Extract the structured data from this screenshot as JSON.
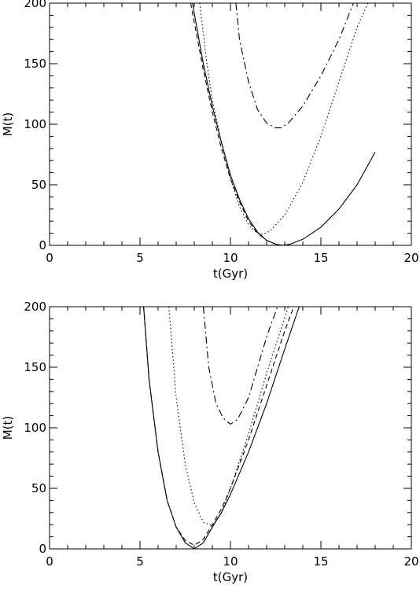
{
  "chart_data": [
    {
      "type": "line",
      "xlabel": "t(Gyr)",
      "ylabel": "M(t)",
      "xlim": [
        0,
        20
      ],
      "ylim": [
        0,
        200
      ],
      "xticks": [
        0,
        5,
        10,
        15,
        20
      ],
      "yticks": [
        0,
        50,
        100,
        150,
        200
      ],
      "grid": false,
      "series": [
        {
          "style": "solid",
          "x": [
            7.9,
            8.5,
            9.0,
            9.5,
            10.0,
            10.5,
            11.0,
            11.5,
            12.0,
            12.5,
            12.9,
            13.3,
            14.0,
            15.0,
            16.0,
            17.0,
            18.0
          ],
          "y": [
            200,
            150,
            115,
            85,
            58,
            38,
            22,
            11,
            4,
            1,
            0,
            1,
            5,
            15,
            30,
            50,
            77
          ]
        },
        {
          "style": "dashed",
          "x": [
            7.8,
            8.5,
            9.0,
            9.5,
            10.0,
            10.5,
            11.0,
            11.5,
            12.0,
            12.5,
            12.9,
            13.3
          ],
          "y": [
            200,
            145,
            110,
            80,
            55,
            36,
            20,
            10,
            4,
            1,
            0,
            1
          ]
        },
        {
          "style": "dotted",
          "x": [
            8.3,
            8.7,
            9.0,
            9.5,
            10.0,
            10.5,
            11.0,
            11.5,
            11.8,
            12.2,
            13.0,
            14.0,
            15.0,
            16.0,
            17.0,
            17.6
          ],
          "y": [
            200,
            150,
            120,
            85,
            55,
            32,
            17,
            10,
            9,
            12,
            25,
            52,
            90,
            135,
            180,
            200
          ]
        },
        {
          "style": "dashdot",
          "x": [
            10.3,
            10.5,
            11.0,
            11.5,
            12.0,
            12.5,
            12.8,
            13.2,
            14.0,
            15.0,
            16.0,
            16.8
          ],
          "y": [
            200,
            170,
            135,
            112,
            101,
            97,
            97,
            101,
            115,
            140,
            170,
            200
          ]
        }
      ]
    },
    {
      "type": "line",
      "xlabel": "t(Gyr)",
      "ylabel": "M(t)",
      "xlim": [
        0,
        20
      ],
      "ylim": [
        0,
        200
      ],
      "xticks": [
        0,
        5,
        10,
        15,
        20
      ],
      "yticks": [
        0,
        50,
        100,
        150,
        200
      ],
      "grid": false,
      "series": [
        {
          "style": "solid",
          "x": [
            5.2,
            5.5,
            6.0,
            6.5,
            7.0,
            7.5,
            8.0,
            8.5,
            9.0,
            9.5,
            10.0,
            11.0,
            12.0,
            13.0,
            13.8
          ],
          "y": [
            200,
            140,
            80,
            40,
            18,
            5,
            0,
            5,
            18,
            30,
            45,
            80,
            120,
            165,
            200
          ]
        },
        {
          "style": "dashed",
          "x": [
            5.2,
            5.5,
            6.0,
            6.5,
            7.0,
            7.5,
            8.0,
            8.5,
            9.0,
            9.5,
            10.0,
            11.0,
            12.0,
            13.0,
            13.5
          ],
          "y": [
            200,
            140,
            80,
            40,
            18,
            7,
            3,
            8,
            20,
            33,
            50,
            90,
            135,
            180,
            200
          ]
        },
        {
          "style": "dotted",
          "x": [
            6.6,
            7.0,
            7.5,
            8.0,
            8.5,
            9.0,
            9.5,
            10.0,
            11.0,
            12.0,
            13.2
          ],
          "y": [
            200,
            125,
            70,
            38,
            22,
            19,
            30,
            50,
            95,
            145,
            200
          ]
        },
        {
          "style": "dashdot",
          "x": [
            8.5,
            8.8,
            9.2,
            9.6,
            10.0,
            10.4,
            11.0,
            11.5,
            12.0,
            12.6
          ],
          "y": [
            200,
            150,
            120,
            108,
            103,
            107,
            125,
            150,
            175,
            200
          ]
        }
      ]
    }
  ]
}
